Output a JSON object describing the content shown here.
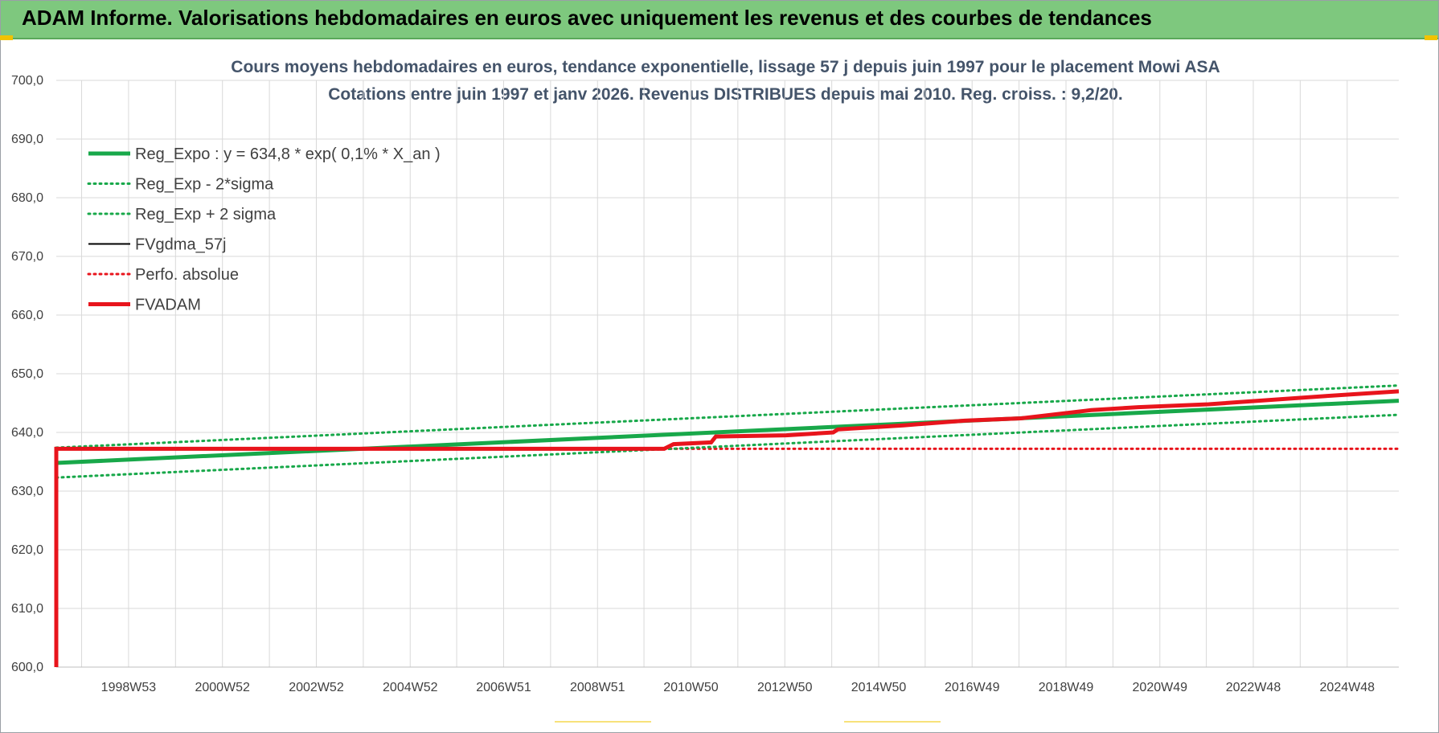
{
  "banner": {
    "title": "ADAM Informe. Valorisations hebdomadaires en euros avec uniquement les revenus et des courbes de tendances"
  },
  "colors": {
    "banner_bg": "#7ec87e",
    "green": "#18a84a",
    "red": "#e8141c",
    "black": "#000000",
    "grid": "#d9d9d9"
  },
  "chart_data": {
    "type": "line",
    "title_line1": "Cours moyens hebdomadaires en euros, tendance exponentielle, lissage 57 j depuis juin 1997 pour le placement Mowi ASA",
    "title_line2": "Cotations entre juin 1997 et janv 2026.  Revenus DISTRIBUES depuis mai 2010. Reg. croiss. : 9,2/20.",
    "ylim": [
      600,
      700
    ],
    "y_ticks": [
      "600,0",
      "610,0",
      "620,0",
      "630,0",
      "640,0",
      "650,0",
      "660,0",
      "670,0",
      "680,0",
      "690,0",
      "700,0"
    ],
    "x_range": [
      1997.45,
      2026.05
    ],
    "x_ticks": [
      {
        "label": "1998W53",
        "year": 1998.99
      },
      {
        "label": "2000W52",
        "year": 2000.99
      },
      {
        "label": "2002W52",
        "year": 2002.99
      },
      {
        "label": "2004W52",
        "year": 2004.99
      },
      {
        "label": "2006W51",
        "year": 2006.98
      },
      {
        "label": "2008W51",
        "year": 2008.98
      },
      {
        "label": "2010W50",
        "year": 2010.97
      },
      {
        "label": "2012W50",
        "year": 2012.97
      },
      {
        "label": "2014W50",
        "year": 2014.97
      },
      {
        "label": "2016W49",
        "year": 2016.96
      },
      {
        "label": "2018W49",
        "year": 2018.96
      },
      {
        "label": "2020W49",
        "year": 2020.96
      },
      {
        "label": "2022W48",
        "year": 2022.95
      },
      {
        "label": "2024W48",
        "year": 2024.95
      }
    ],
    "series": [
      {
        "name": "Reg_Expo : y = 634,8 * exp( 0,1% *  X_an )",
        "style": "solid-thick",
        "color": "#18a84a",
        "points": [
          [
            1997.45,
            634.8
          ],
          [
            2026.05,
            645.4
          ]
        ]
      },
      {
        "name": "Reg_Exp - 2*sigma",
        "style": "dotted",
        "color": "#18a84a",
        "points": [
          [
            1997.45,
            632.3
          ],
          [
            2026.05,
            643.0
          ]
        ]
      },
      {
        "name": "Reg_Exp + 2 sigma",
        "style": "dotted",
        "color": "#18a84a",
        "points": [
          [
            1997.45,
            637.4
          ],
          [
            2026.05,
            648.0
          ]
        ]
      },
      {
        "name": "FVgdma_57j",
        "style": "solid",
        "color": "#000000",
        "points": [
          [
            1997.45,
            637.2
          ],
          [
            2010.4,
            637.2
          ],
          [
            2010.6,
            638.0
          ],
          [
            2011.4,
            638.3
          ],
          [
            2011.5,
            639.3
          ],
          [
            2013.0,
            639.5
          ],
          [
            2014.0,
            640.0
          ],
          [
            2014.1,
            640.5
          ],
          [
            2015.5,
            641.2
          ],
          [
            2016.8,
            642.0
          ],
          [
            2018.0,
            642.4
          ],
          [
            2019.5,
            643.8
          ],
          [
            2020.5,
            644.3
          ],
          [
            2022.0,
            644.8
          ],
          [
            2024.5,
            646.2
          ],
          [
            2026.05,
            647.0
          ]
        ]
      },
      {
        "name": "Perfo. absolue",
        "style": "dotted",
        "color": "#e8141c",
        "points": [
          [
            1997.45,
            637.2
          ],
          [
            2026.05,
            637.2
          ]
        ]
      },
      {
        "name": "FVADAM",
        "style": "solid-thick",
        "color": "#e8141c",
        "points": [
          [
            1997.45,
            600.0
          ],
          [
            1997.45,
            637.2
          ],
          [
            2010.4,
            637.2
          ],
          [
            2010.6,
            638.0
          ],
          [
            2011.4,
            638.3
          ],
          [
            2011.5,
            639.3
          ],
          [
            2013.0,
            639.5
          ],
          [
            2014.0,
            640.0
          ],
          [
            2014.1,
            640.5
          ],
          [
            2015.5,
            641.2
          ],
          [
            2016.8,
            642.0
          ],
          [
            2018.0,
            642.4
          ],
          [
            2019.5,
            643.8
          ],
          [
            2020.5,
            644.3
          ],
          [
            2022.0,
            644.8
          ],
          [
            2024.5,
            646.2
          ],
          [
            2026.05,
            647.0
          ]
        ]
      }
    ],
    "legend_position": "top-left",
    "grid": true
  }
}
